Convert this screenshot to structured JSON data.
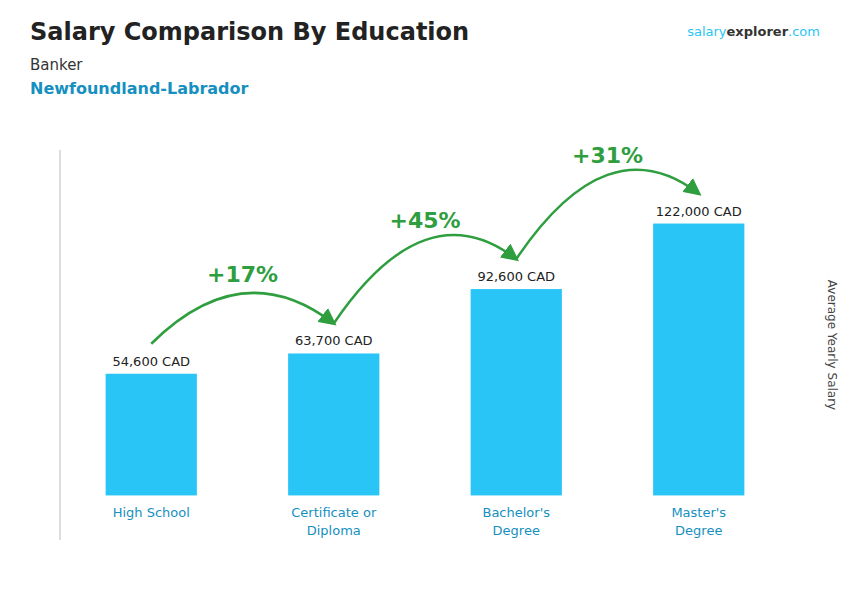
{
  "chart_data": {
    "type": "bar",
    "title": "Salary Comparison By Education",
    "subtitle": [
      "Banker",
      "Newfoundland-Labrador"
    ],
    "credit": [
      "salary",
      "explorer",
      ".com"
    ],
    "ylabel": "Average Yearly Salary",
    "categories": [
      "High School",
      "Certificate or\nDiploma",
      "Bachelor's\nDegree",
      "Master's\nDegree"
    ],
    "values": [
      54600,
      63700,
      92600,
      122000
    ],
    "value_labels": [
      "54,600 CAD",
      "63,700 CAD",
      "92,600 CAD",
      "122,000 CAD"
    ],
    "data_labels": true,
    "annotations": [
      "+17%",
      "+45%",
      "+31%"
    ],
    "color": "#29c5f6",
    "ylim": [
      -20000,
      155000
    ],
    "tick_labels": false,
    "grid": false
  }
}
